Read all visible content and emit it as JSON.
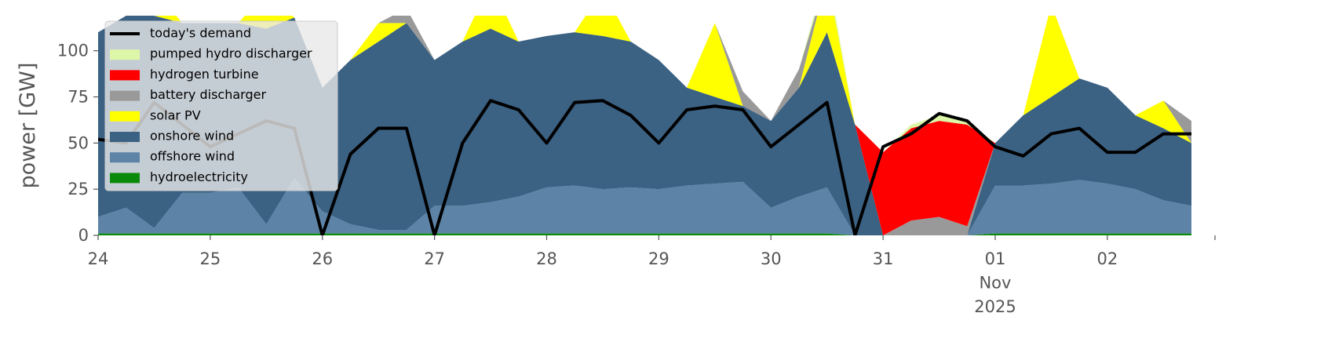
{
  "chart_data": {
    "type": "area",
    "ylabel": "power [GW]",
    "x": [
      0,
      0.25,
      0.5,
      0.75,
      1,
      1.25,
      1.5,
      1.75,
      2,
      2.25,
      2.5,
      2.75,
      3,
      3.25,
      3.5,
      3.75,
      4,
      4.25,
      4.5,
      4.75,
      5,
      5.25,
      5.5,
      5.75,
      6,
      6.25,
      6.5,
      6.75,
      7,
      7.25,
      7.5,
      7.75,
      8,
      8.25,
      8.5,
      8.75,
      9,
      9.25,
      9.5,
      9.75
    ],
    "xlim": [
      0,
      9.96
    ],
    "xticks": [
      {
        "value": 0,
        "label": "24"
      },
      {
        "value": 1,
        "label": "25"
      },
      {
        "value": 2,
        "label": "26"
      },
      {
        "value": 3,
        "label": "27"
      },
      {
        "value": 4,
        "label": "28"
      },
      {
        "value": 5,
        "label": "29"
      },
      {
        "value": 6,
        "label": "30"
      },
      {
        "value": 7,
        "label": "31"
      },
      {
        "value": 8,
        "label": "01\nNov\n2025"
      },
      {
        "value": 9,
        "label": "02"
      }
    ],
    "ylim": [
      0,
      119
    ],
    "yticks": [
      0,
      25,
      50,
      75,
      100
    ],
    "grid": false,
    "legend": "upper left",
    "series": [
      {
        "name": "today's demand",
        "color": "#000000",
        "style": "line",
        "values": [
          52,
          50,
          72,
          60,
          48,
          55,
          62,
          58,
          0,
          44,
          58,
          58,
          0,
          50,
          73,
          68,
          50,
          72,
          73,
          65,
          50,
          68,
          70,
          68,
          48,
          60,
          72,
          0,
          48,
          55,
          66,
          62,
          48,
          43,
          55,
          58,
          45,
          45,
          55,
          55
        ]
      },
      {
        "name": "pumped hydro discharger",
        "color": "#dcf7a8",
        "values": [
          0,
          0,
          0,
          0,
          0,
          0,
          0,
          0,
          0,
          0,
          0,
          0,
          0,
          0,
          0,
          0,
          0,
          0,
          0,
          0,
          0,
          0,
          0,
          0,
          0,
          0,
          5,
          0,
          0,
          2,
          3,
          2,
          0,
          0,
          0,
          0,
          0,
          0,
          0,
          0
        ]
      },
      {
        "name": "hydrogen turbine",
        "color": "#ff0000",
        "values": [
          0,
          0,
          0,
          0,
          0,
          0,
          0,
          0,
          0,
          0,
          0,
          0,
          0,
          0,
          0,
          0,
          0,
          0,
          0,
          0,
          0,
          0,
          0,
          0,
          0,
          0,
          0,
          0,
          45,
          50,
          52,
          55,
          0,
          0,
          0,
          0,
          0,
          0,
          0,
          0
        ]
      },
      {
        "name": "battery discharger",
        "color": "#999999",
        "values": [
          0,
          0,
          0,
          0,
          0,
          0,
          0,
          0,
          0,
          0,
          0,
          8,
          0,
          0,
          0,
          0,
          0,
          0,
          0,
          0,
          0,
          0,
          0,
          8,
          0,
          10,
          0,
          0,
          0,
          8,
          10,
          5,
          0,
          0,
          0,
          0,
          0,
          0,
          0,
          12
        ]
      },
      {
        "name": "solar PV",
        "color": "#ffff00",
        "values": [
          0,
          0,
          15,
          0,
          0,
          0,
          20,
          0,
          0,
          0,
          10,
          0,
          0,
          0,
          25,
          0,
          0,
          0,
          25,
          0,
          0,
          0,
          40,
          0,
          0,
          0,
          30,
          0,
          0,
          0,
          0,
          0,
          0,
          0,
          50,
          0,
          0,
          0,
          15,
          0
        ]
      },
      {
        "name": "onshore wind",
        "color": "#3b6183",
        "values": [
          100,
          104,
          115,
          92,
          92,
          89,
          106,
          87,
          67,
          89,
          102,
          112,
          79,
          89,
          94,
          84,
          82,
          83,
          83,
          79,
          70,
          53,
          47,
          41,
          47,
          59,
          84,
          60,
          0,
          0,
          0,
          0,
          23,
          38,
          47,
          55,
          52,
          40,
          39,
          34
        ]
      },
      {
        "name": "offshore wind",
        "color": "#5d83a6",
        "values": [
          9,
          14,
          3,
          22,
          22,
          25,
          5,
          30,
          12,
          5,
          2,
          2,
          15,
          15,
          17,
          20,
          25,
          26,
          24,
          25,
          24,
          26,
          27,
          28,
          14,
          20,
          25,
          0,
          0,
          0,
          0,
          0,
          26,
          26,
          27,
          29,
          27,
          24,
          18,
          15
        ]
      },
      {
        "name": "hydroelectricity",
        "color": "#0a8a0a",
        "values": [
          1,
          1,
          1,
          1,
          1,
          1,
          1,
          1,
          1,
          1,
          1,
          1,
          1,
          1,
          1,
          1,
          1,
          1,
          1,
          1,
          1,
          1,
          1,
          1,
          1,
          1,
          1,
          0,
          0,
          0,
          0,
          0,
          1,
          1,
          1,
          1,
          1,
          1,
          1,
          1
        ]
      }
    ]
  }
}
